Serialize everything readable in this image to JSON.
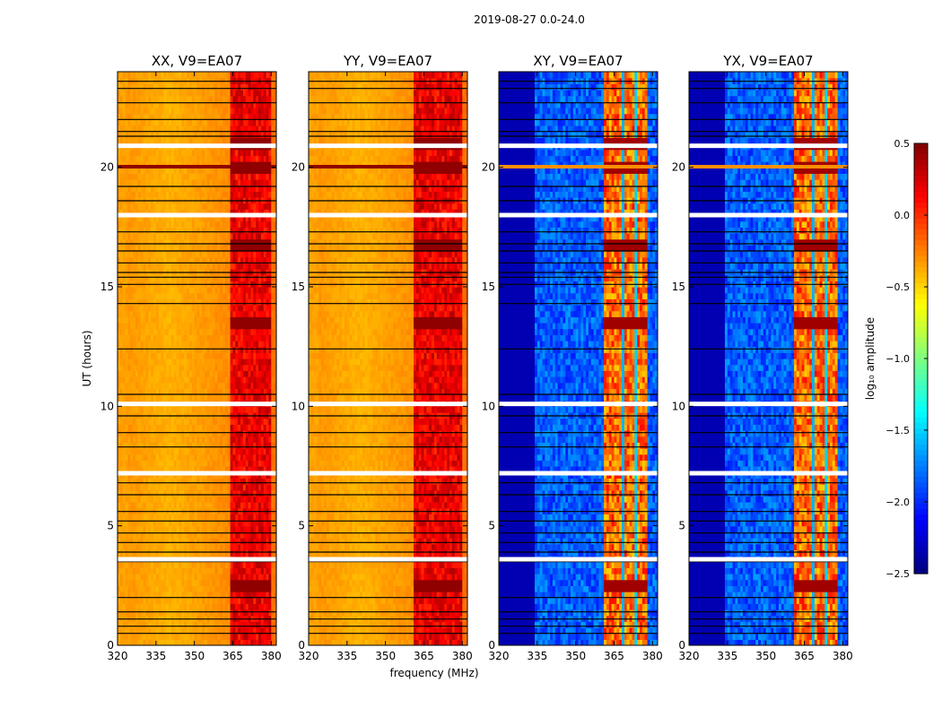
{
  "suptitle": "2019-08-27 0.0-24.0",
  "colors": {
    "jet": [
      "#00007f",
      "#0000ff",
      "#007fff",
      "#00ffff",
      "#7fff7f",
      "#ffff00",
      "#ff7f00",
      "#ff0000",
      "#7f0000"
    ],
    "flag_line": "#000000",
    "gap": "#ffffff"
  },
  "chart_data": {
    "type": "heatmap",
    "title": "2019-08-27 0.0-24.0",
    "xlabel": "frequency (MHz)",
    "ylabel": "UT (hours)",
    "xlim": [
      320,
      382
    ],
    "ylim": [
      0,
      24
    ],
    "xticks": [
      "320",
      "335",
      "350",
      "365",
      "380"
    ],
    "xtick_values": [
      320,
      335,
      350,
      365,
      380
    ],
    "yticks": [
      "0",
      "5",
      "10",
      "15",
      "20"
    ],
    "ytick_values": [
      0,
      5,
      10,
      15,
      20
    ],
    "panels": [
      {
        "title": "XX, V9=EA07",
        "polarization": "XX",
        "cross": false,
        "rfi_start": 364,
        "rfi_end": 380
      },
      {
        "title": "YY, V9=EA07",
        "polarization": "YY",
        "cross": false,
        "rfi_start": 361,
        "rfi_end": 380
      },
      {
        "title": "XY, V9=EA07",
        "polarization": "XY",
        "cross": true,
        "rfi_start": 361,
        "rfi_end": 378
      },
      {
        "title": "YX, V9=EA07",
        "polarization": "YX",
        "cross": true,
        "rfi_start": 361,
        "rfi_end": 378
      }
    ],
    "strong_rfi_hours": [
      20.0,
      2.5,
      13.5,
      21.0,
      16.8
    ],
    "flagged_hours": [
      0.5,
      0.8,
      1.1,
      1.4,
      2.0,
      3.5,
      3.9,
      4.3,
      4.7,
      5.2,
      5.6,
      6.3,
      6.8,
      8.3,
      8.9,
      9.6,
      10.5,
      12.4,
      14.3,
      15.1,
      15.4,
      15.6,
      16.0,
      16.5,
      16.8,
      17.3,
      18.0,
      18.6,
      19.2,
      21.3,
      21.5,
      22.0,
      22.7,
      23.3,
      23.6
    ],
    "gap_hours": [
      3.6,
      7.2,
      10.1,
      18.0,
      20.9
    ],
    "colorbar": {
      "label": "log₁₀ amplitude",
      "range": [
        -2.5,
        0.5
      ],
      "ticks": [
        "0.5",
        "0.0",
        "−0.5",
        "−1.0",
        "−1.5",
        "−2.0",
        "−2.5"
      ],
      "tick_values": [
        0.5,
        0.0,
        -0.5,
        -1.0,
        -1.5,
        -2.0,
        -2.5
      ]
    }
  }
}
